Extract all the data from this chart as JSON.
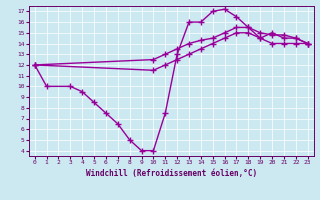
{
  "xlabel": "Windchill (Refroidissement éolien,°C)",
  "bg_color": "#cce8f0",
  "line_color": "#990099",
  "marker": "+",
  "markersize": 4,
  "linewidth": 1.0,
  "xlim": [
    -0.5,
    23.5
  ],
  "ylim": [
    3.5,
    17.5
  ],
  "xticks": [
    0,
    1,
    2,
    3,
    4,
    5,
    6,
    7,
    8,
    9,
    10,
    11,
    12,
    13,
    14,
    15,
    16,
    17,
    18,
    19,
    20,
    21,
    22,
    23
  ],
  "yticks": [
    4,
    5,
    6,
    7,
    8,
    9,
    10,
    11,
    12,
    13,
    14,
    15,
    16,
    17
  ],
  "series": [
    {
      "x": [
        0,
        1,
        3,
        4,
        5,
        6,
        7,
        8,
        9,
        10,
        11,
        12,
        13,
        14,
        15,
        16,
        17,
        18,
        19,
        20,
        21,
        22,
        23
      ],
      "y": [
        12,
        10,
        10,
        9.5,
        8.5,
        7.5,
        6.5,
        5,
        4,
        4,
        7.5,
        13,
        16,
        16,
        17,
        17.2,
        16.5,
        15.5,
        14.5,
        15,
        14.5,
        14.5,
        14
      ]
    },
    {
      "x": [
        0,
        10,
        11,
        12,
        13,
        14,
        15,
        16,
        17,
        18,
        19,
        20,
        21,
        22,
        23
      ],
      "y": [
        12,
        12.5,
        13,
        13.5,
        14,
        14.3,
        14.5,
        15,
        15.5,
        15.5,
        15,
        14.8,
        14.8,
        14.5,
        14
      ]
    },
    {
      "x": [
        0,
        10,
        11,
        12,
        13,
        14,
        15,
        16,
        17,
        18,
        19,
        20,
        21,
        22,
        23
      ],
      "y": [
        12,
        11.5,
        12,
        12.5,
        13,
        13.5,
        14,
        14.5,
        15,
        15,
        14.5,
        14,
        14,
        14,
        14
      ]
    }
  ]
}
